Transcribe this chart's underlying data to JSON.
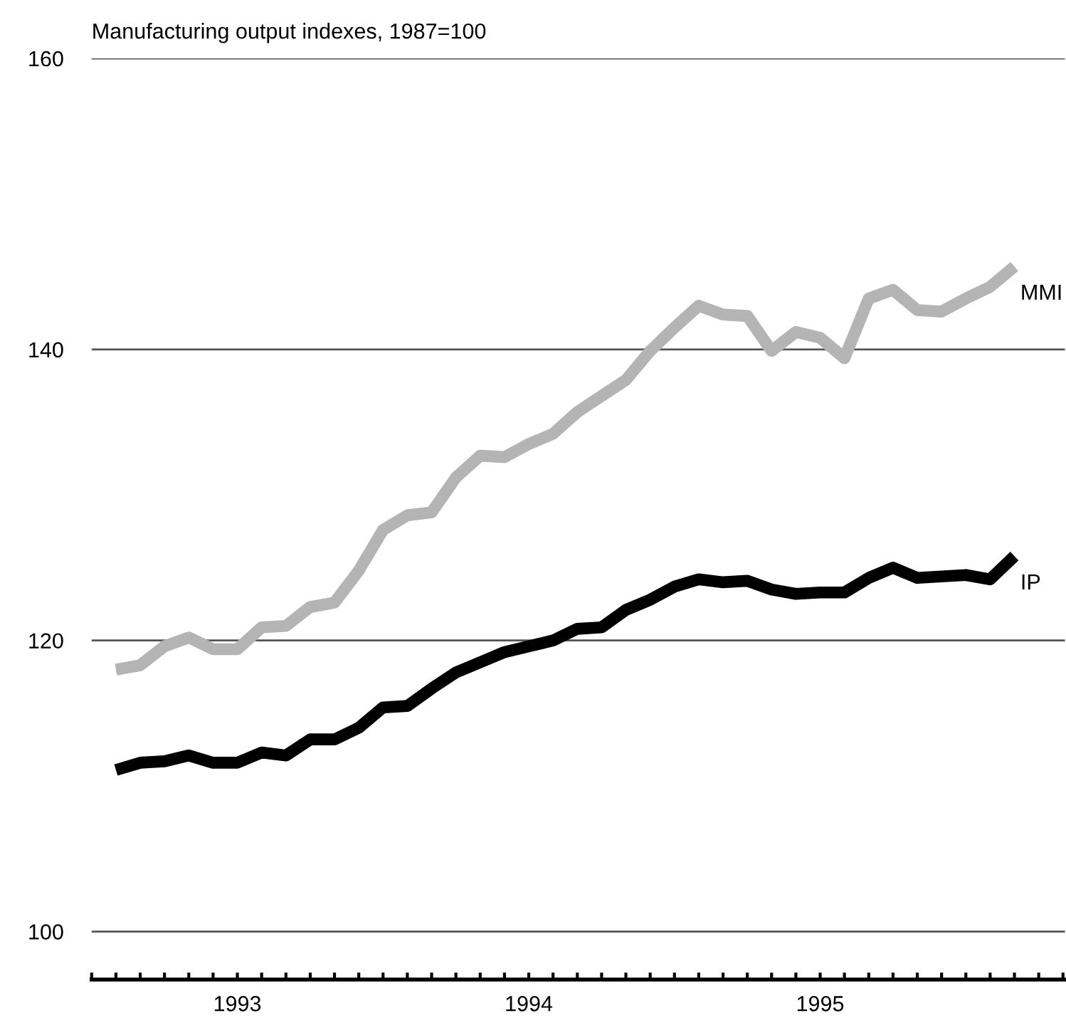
{
  "chart_data": {
    "type": "line",
    "title": "Manufacturing output indexes, 1987=100",
    "x": [
      1993.0833,
      1993.1667,
      1993.25,
      1993.3333,
      1993.4167,
      1993.5,
      1993.5833,
      1993.6667,
      1993.75,
      1993.8333,
      1993.9167,
      1994.0,
      1994.0833,
      1994.1667,
      1994.25,
      1994.3333,
      1994.4167,
      1994.5,
      1994.5833,
      1994.6667,
      1994.75,
      1994.8333,
      1994.9167,
      1995.0,
      1995.0833,
      1995.1667,
      1995.25,
      1995.3333,
      1995.4167,
      1995.5,
      1995.5833,
      1995.6667,
      1995.75,
      1995.8333,
      1995.9167,
      1996.0,
      1996.0833,
      1996.1667
    ],
    "series": [
      {
        "name": "MMI",
        "color": "#b4b4b4",
        "values": [
          118.0,
          118.3,
          119.6,
          120.2,
          119.4,
          119.4,
          120.9,
          121.0,
          122.3,
          122.6,
          124.8,
          127.6,
          128.6,
          128.8,
          131.2,
          132.7,
          132.6,
          133.5,
          134.2,
          135.7,
          136.8,
          137.9,
          139.9,
          141.5,
          143.0,
          142.4,
          142.3,
          139.9,
          141.2,
          140.8,
          139.4,
          143.5,
          144.1,
          142.7,
          142.6,
          143.5,
          144.3,
          145.7
        ]
      },
      {
        "name": "IP",
        "color": "#000000",
        "values": [
          111.1,
          111.6,
          111.7,
          112.1,
          111.6,
          111.6,
          112.3,
          112.1,
          113.2,
          113.2,
          114.0,
          115.4,
          115.5,
          116.7,
          117.8,
          118.5,
          119.2,
          119.6,
          120.0,
          120.8,
          120.9,
          122.1,
          122.8,
          123.7,
          124.2,
          124.0,
          124.1,
          123.5,
          123.2,
          123.3,
          123.3,
          124.3,
          125.0,
          124.3,
          124.4,
          124.5,
          124.2,
          125.8
        ]
      }
    ],
    "xlim": [
      1993,
      1996.34
    ],
    "xticks": [
      {
        "value": 1993,
        "label": null
      },
      {
        "value": 1993.0833,
        "label": null
      },
      {
        "value": 1993.1667,
        "label": null
      },
      {
        "value": 1993.25,
        "label": null
      },
      {
        "value": 1993.3333,
        "label": null
      },
      {
        "value": 1993.4167,
        "label": null
      },
      {
        "value": 1993.5,
        "label": "1993"
      },
      {
        "value": 1993.5833,
        "label": null
      },
      {
        "value": 1993.6667,
        "label": null
      },
      {
        "value": 1993.75,
        "label": null
      },
      {
        "value": 1993.8333,
        "label": null
      },
      {
        "value": 1993.9167,
        "label": null
      },
      {
        "value": 1994,
        "label": null
      },
      {
        "value": 1994.0833,
        "label": null
      },
      {
        "value": 1994.1667,
        "label": null
      },
      {
        "value": 1994.25,
        "label": null
      },
      {
        "value": 1994.3333,
        "label": null
      },
      {
        "value": 1994.4167,
        "label": null
      },
      {
        "value": 1994.5,
        "label": "1994"
      },
      {
        "value": 1994.5833,
        "label": null
      },
      {
        "value": 1994.6667,
        "label": null
      },
      {
        "value": 1994.75,
        "label": null
      },
      {
        "value": 1994.8333,
        "label": null
      },
      {
        "value": 1994.9167,
        "label": null
      },
      {
        "value": 1995,
        "label": null
      },
      {
        "value": 1995.0833,
        "label": null
      },
      {
        "value": 1995.1667,
        "label": null
      },
      {
        "value": 1995.25,
        "label": null
      },
      {
        "value": 1995.3333,
        "label": null
      },
      {
        "value": 1995.4167,
        "label": null
      },
      {
        "value": 1995.5,
        "label": "1995"
      },
      {
        "value": 1995.5833,
        "label": null
      },
      {
        "value": 1995.6667,
        "label": null
      },
      {
        "value": 1995.75,
        "label": null
      },
      {
        "value": 1995.8333,
        "label": null
      },
      {
        "value": 1995.9167,
        "label": null
      },
      {
        "value": 1996,
        "label": null
      },
      {
        "value": 1996.0833,
        "label": null
      },
      {
        "value": 1996.1667,
        "label": null
      },
      {
        "value": 1996.25,
        "label": null
      },
      {
        "value": 1996.3333,
        "label": null
      }
    ],
    "ylim": [
      96.7,
      160
    ],
    "yticks": [
      100,
      120,
      140,
      160
    ],
    "grid": "y",
    "line_style": "solid",
    "marker": "none",
    "legend": false
  }
}
